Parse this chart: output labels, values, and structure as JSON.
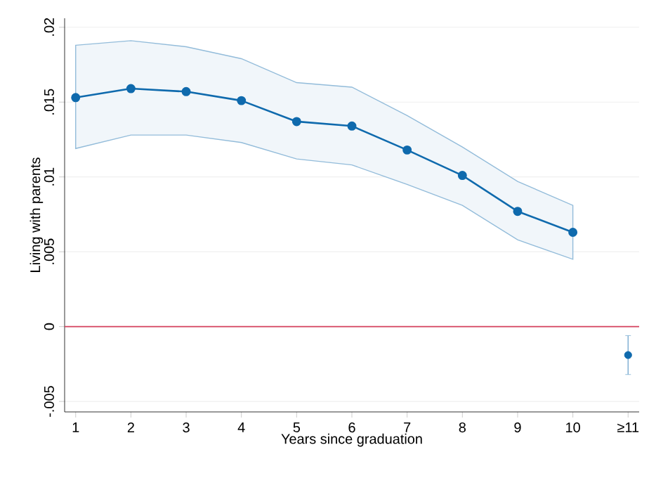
{
  "chart_data": {
    "type": "line",
    "xlabel": "Years since graduation",
    "ylabel": "Living with parents",
    "categories": [
      "1",
      "2",
      "3",
      "4",
      "5",
      "6",
      "7",
      "8",
      "9",
      "10",
      "≥11"
    ],
    "series": [
      {
        "color": "#0f6aad",
        "marker": "circle",
        "values": [
          0.0153,
          0.0159,
          0.0157,
          0.0151,
          0.0137,
          0.0134,
          0.0118,
          0.0101,
          0.0077,
          0.0063,
          null
        ],
        "lower": [
          0.0119,
          0.0128,
          0.0128,
          0.0123,
          0.0112,
          0.0108,
          0.0095,
          0.0081,
          0.0058,
          0.0045,
          null
        ],
        "upper": [
          0.0188,
          0.0191,
          0.0187,
          0.0179,
          0.0163,
          0.016,
          0.0141,
          0.012,
          0.0097,
          0.0081,
          null
        ]
      },
      {
        "type": "scatter",
        "color": "#0f6aad",
        "marker": "circle",
        "values": [
          null,
          null,
          null,
          null,
          null,
          null,
          null,
          null,
          null,
          null,
          -0.0019
        ],
        "errors": [
          null,
          null,
          null,
          null,
          null,
          null,
          null,
          null,
          null,
          null,
          [
            -0.0032,
            -0.0006
          ]
        ]
      }
    ],
    "ylim": [
      -0.0057,
      0.0206
    ],
    "yticks": [
      {
        "value": -0.005,
        "label": "-.005"
      },
      {
        "value": 0,
        "label": "0"
      },
      {
        "value": 0.005,
        "label": ".005"
      },
      {
        "value": 0.01,
        "label": ".01"
      },
      {
        "value": 0.015,
        "label": ".015"
      },
      {
        "value": 0.02,
        "label": ".02"
      }
    ],
    "grid": "y",
    "ref_lines": [
      {
        "axis": "y",
        "value": 0,
        "color": "#d5425e"
      }
    ]
  }
}
